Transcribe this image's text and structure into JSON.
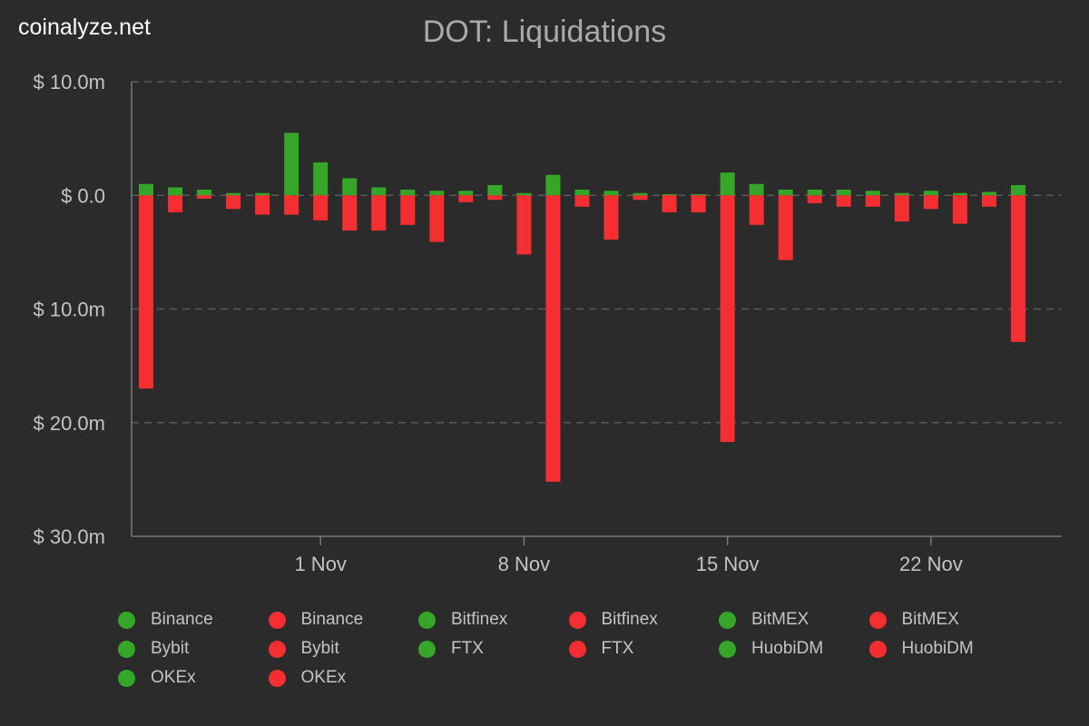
{
  "site": "coinalyze.net",
  "chart_data": {
    "type": "bar",
    "title": "DOT: Liquidations",
    "y_tick_labels": [
      "$ 10.0m",
      "$ 0.0",
      "$ 10.0m",
      "$ 20.0m",
      "$ 30.0m"
    ],
    "y_tick_values": [
      10,
      0,
      -10,
      -20,
      -30
    ],
    "ylim": [
      -30,
      10
    ],
    "x_tick_labels": [
      "1 Nov",
      "8 Nov",
      "15 Nov",
      "22 Nov"
    ],
    "x_tick_dates": [
      "2021-11-01",
      "2021-11-08",
      "2021-11-15",
      "2021-11-22"
    ],
    "dates": [
      "2021-10-26",
      "2021-10-27",
      "2021-10-28",
      "2021-10-29",
      "2021-10-30",
      "2021-10-31",
      "2021-11-01",
      "2021-11-02",
      "2021-11-03",
      "2021-11-04",
      "2021-11-05",
      "2021-11-06",
      "2021-11-07",
      "2021-11-08",
      "2021-11-09",
      "2021-11-10",
      "2021-11-11",
      "2021-11-12",
      "2021-11-13",
      "2021-11-14",
      "2021-11-15",
      "2021-11-16",
      "2021-11-17",
      "2021-11-18",
      "2021-11-19",
      "2021-11-20",
      "2021-11-21",
      "2021-11-22",
      "2021-11-23",
      "2021-11-24",
      "2021-11-25",
      "2021-11-26"
    ],
    "long_liquidations": [
      1.0,
      0.7,
      0.5,
      0.2,
      0.2,
      5.5,
      2.9,
      1.5,
      0.7,
      0.5,
      0.4,
      0.4,
      0.9,
      0.2,
      1.8,
      0.5,
      0.4,
      0.2,
      0.1,
      0.1,
      2.0,
      1.0,
      0.5,
      0.5,
      0.5,
      0.4,
      0.2,
      0.4,
      0.2,
      0.3,
      0.9,
      0.0
    ],
    "short_liquidations": [
      -17.0,
      -1.5,
      -0.3,
      -1.2,
      -1.7,
      -1.7,
      -2.2,
      -3.1,
      -3.1,
      -2.6,
      -4.1,
      -0.6,
      -0.4,
      -5.2,
      -25.2,
      -1.0,
      -3.9,
      -0.4,
      -1.5,
      -1.5,
      -21.7,
      -2.6,
      -5.7,
      -0.7,
      -1.0,
      -1.0,
      -2.3,
      -1.2,
      -2.5,
      -1.0,
      -12.9,
      0.0
    ],
    "legend": [
      {
        "label": "Binance",
        "color": "#35a628"
      },
      {
        "label": "Binance",
        "color": "#f52f31"
      },
      {
        "label": "Bitfinex",
        "color": "#35a628"
      },
      {
        "label": "Bitfinex",
        "color": "#f52f31"
      },
      {
        "label": "BitMEX",
        "color": "#35a628"
      },
      {
        "label": "BitMEX",
        "color": "#f52f31"
      },
      {
        "label": "Bybit",
        "color": "#35a628"
      },
      {
        "label": "Bybit",
        "color": "#f52f31"
      },
      {
        "label": "FTX",
        "color": "#35a628"
      },
      {
        "label": "FTX",
        "color": "#f52f31"
      },
      {
        "label": "HuobiDM",
        "color": "#35a628"
      },
      {
        "label": "HuobiDM",
        "color": "#f52f31"
      },
      {
        "label": "OKEx",
        "color": "#35a628"
      },
      {
        "label": "OKEx",
        "color": "#f52f31"
      }
    ],
    "colors": {
      "long": "#35a628",
      "short": "#f52f31",
      "grid": "#5a5a5a",
      "axis": "#777777",
      "text": "#c4c4c4"
    },
    "grid": true,
    "legend_position": "bottom"
  }
}
